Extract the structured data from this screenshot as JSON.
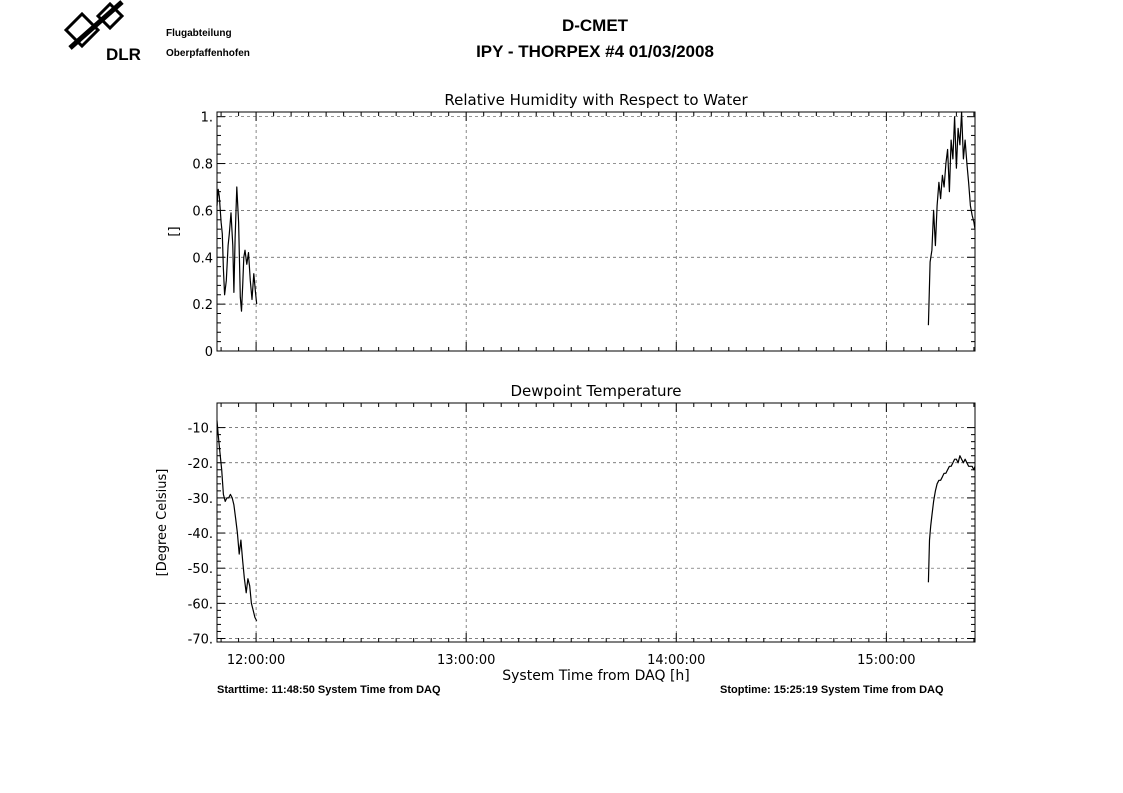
{
  "header": {
    "logo_text": "DLR",
    "org_line1": "Flugabteilung",
    "org_line2": "Oberpfaffenhofen",
    "title": "D-CMET",
    "subtitle": "IPY - THORPEX #4   01/03/2008"
  },
  "footer": {
    "start": "Starttime: 11:48:50 System Time from DAQ",
    "stop": "Stoptime: 15:25:19 System Time from DAQ"
  },
  "chart_data": [
    {
      "type": "line",
      "title": "Relative Humidity with Respect to Water",
      "ylabel": "[]",
      "xlabel": "",
      "ylim": [
        0,
        1.02
      ],
      "yticks": [
        0,
        0.2,
        0.4,
        0.6,
        0.8,
        1.0
      ],
      "ytick_labels": [
        "0",
        "0.2",
        "0.4",
        "0.6",
        "0.8",
        "1."
      ],
      "grid": true,
      "series": [
        {
          "x": [
            "11:48:50",
            "11:49:10",
            "11:49:30",
            "11:50:00",
            "11:50:20",
            "11:50:40",
            "11:51:00",
            "11:51:30",
            "11:52:00",
            "11:52:20",
            "11:52:50",
            "11:53:20",
            "11:53:40",
            "11:54:00",
            "11:54:30",
            "11:55:00",
            "11:55:30",
            "11:55:50",
            "11:56:10",
            "11:56:30",
            "11:56:50",
            "11:57:20",
            "11:57:50",
            "11:58:20",
            "11:58:50",
            "11:59:20",
            "11:59:50",
            "12:00:10"
          ],
          "y": [
            0.62,
            0.69,
            0.66,
            0.55,
            0.5,
            0.35,
            0.24,
            0.3,
            0.45,
            0.5,
            0.59,
            0.45,
            0.25,
            0.48,
            0.7,
            0.55,
            0.23,
            0.17,
            0.28,
            0.4,
            0.43,
            0.37,
            0.42,
            0.3,
            0.22,
            0.33,
            0.25,
            0.2
          ]
        },
        {
          "x": [
            "15:12:00",
            "15:12:30",
            "15:13:00",
            "15:13:30",
            "15:14:00",
            "15:14:30",
            "15:15:00",
            "15:15:30",
            "15:16:00",
            "15:16:30",
            "15:17:00",
            "15:17:30",
            "15:18:00",
            "15:18:30",
            "15:19:00",
            "15:19:30",
            "15:20:00",
            "15:20:30",
            "15:21:00",
            "15:21:30",
            "15:22:00",
            "15:22:30",
            "15:23:00",
            "15:23:30",
            "15:24:00",
            "15:24:30",
            "15:25:00",
            "15:25:19"
          ],
          "y": [
            0.11,
            0.38,
            0.43,
            0.6,
            0.45,
            0.62,
            0.72,
            0.65,
            0.75,
            0.7,
            0.8,
            0.86,
            0.68,
            0.9,
            0.82,
            1.0,
            0.78,
            0.95,
            0.88,
            1.02,
            0.82,
            0.9,
            0.8,
            0.72,
            0.62,
            0.58,
            0.55,
            0.52
          ]
        }
      ]
    },
    {
      "type": "line",
      "title": "Dewpoint Temperature",
      "ylabel": "[Degree Celsius]",
      "xlabel": "System Time from DAQ [h]",
      "ylim": [
        -71,
        -3
      ],
      "yticks": [
        -70,
        -60,
        -50,
        -40,
        -30,
        -20,
        -10
      ],
      "ytick_labels": [
        "-70.",
        "-60.",
        "-50.",
        "-40.",
        "-30.",
        "-20.",
        "-10."
      ],
      "xticks": [
        "12:00:00",
        "13:00:00",
        "14:00:00",
        "15:00:00"
      ],
      "xlim": [
        "11:48:50",
        "15:25:19"
      ],
      "grid": true,
      "series": [
        {
          "x": [
            "11:48:50",
            "11:49:10",
            "11:49:40",
            "11:50:10",
            "11:50:40",
            "11:51:10",
            "11:51:40",
            "11:52:10",
            "11:52:40",
            "11:53:10",
            "11:53:40",
            "11:54:10",
            "11:54:40",
            "11:55:10",
            "11:55:40",
            "11:56:10",
            "11:56:40",
            "11:57:10",
            "11:57:40",
            "11:58:10",
            "11:58:40",
            "11:59:10",
            "11:59:40",
            "12:00:10"
          ],
          "y": [
            -8,
            -12,
            -17,
            -22,
            -29,
            -31,
            -30,
            -30,
            -29,
            -30,
            -32,
            -36,
            -40,
            -46,
            -42,
            -48,
            -53,
            -57,
            -53,
            -55,
            -60,
            -62,
            -64,
            -65
          ]
        },
        {
          "x": [
            "15:12:00",
            "15:12:20",
            "15:12:40",
            "15:13:00",
            "15:13:30",
            "15:14:00",
            "15:14:30",
            "15:15:00",
            "15:15:30",
            "15:16:00",
            "15:16:30",
            "15:17:00",
            "15:17:30",
            "15:18:00",
            "15:18:30",
            "15:19:00",
            "15:19:30",
            "15:20:00",
            "15:20:30",
            "15:21:00",
            "15:21:30",
            "15:22:00",
            "15:22:30",
            "15:23:00",
            "15:23:30",
            "15:24:00",
            "15:24:30",
            "15:25:00",
            "15:25:19"
          ],
          "y": [
            -54,
            -42,
            -38,
            -35,
            -31,
            -28,
            -26,
            -25,
            -25,
            -24,
            -23,
            -23,
            -22,
            -21,
            -21,
            -20,
            -19,
            -19,
            -20,
            -18,
            -19,
            -20,
            -19,
            -20,
            -21,
            -21,
            -21,
            -22,
            -21
          ]
        }
      ]
    }
  ]
}
